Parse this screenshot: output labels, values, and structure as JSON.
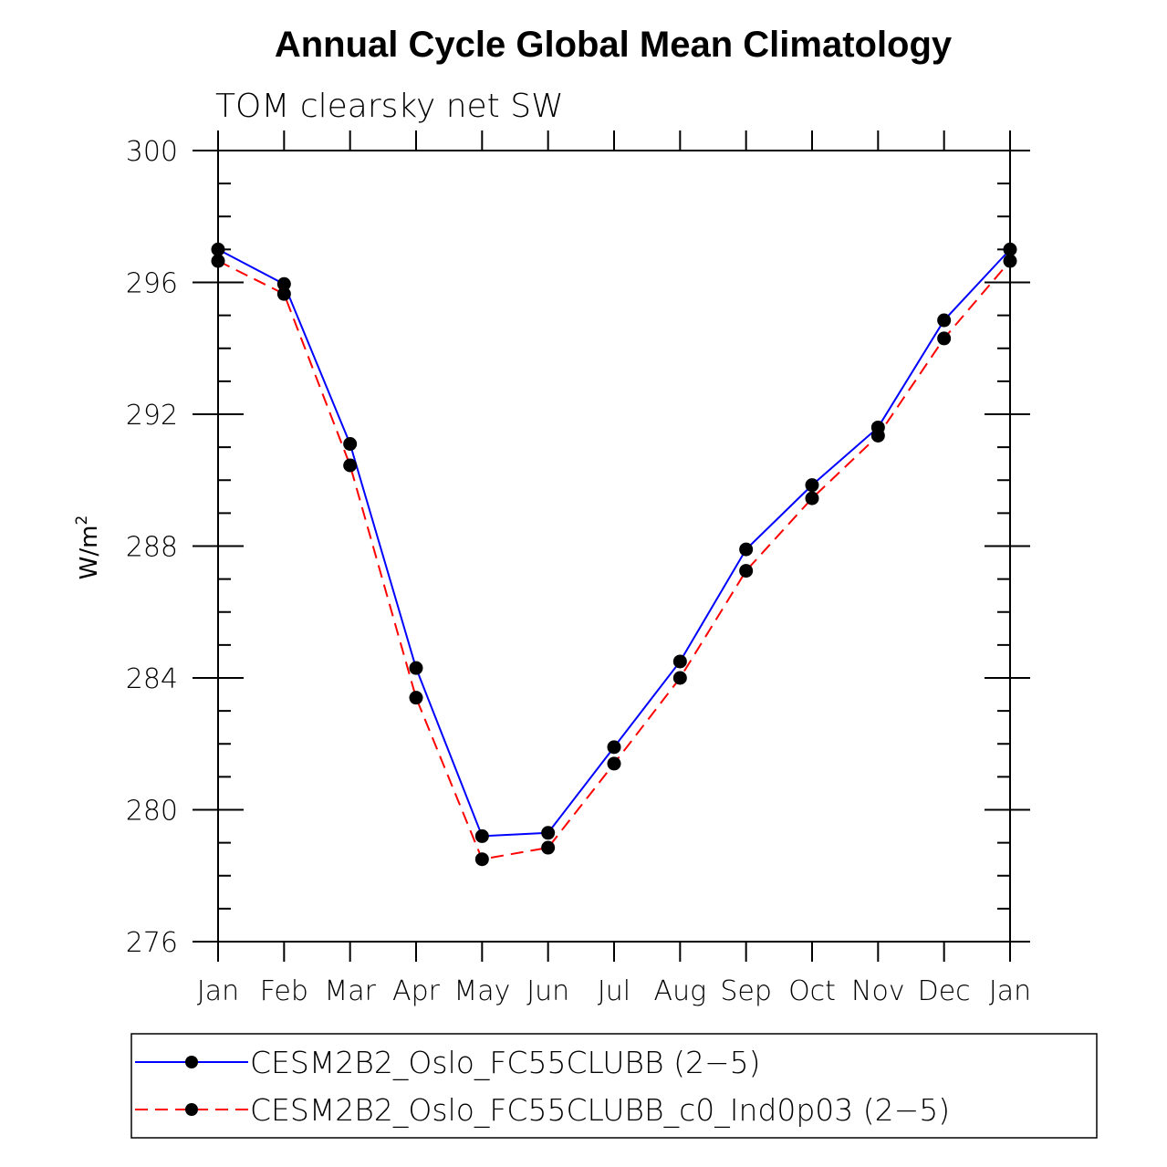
{
  "chart_data": {
    "type": "line",
    "title": "Annual Cycle Global Mean Climatology",
    "subtitle": "TOM clearsky net SW",
    "ylabel": "W/m",
    "ylabel_superscript": "2",
    "ylim": [
      276,
      300
    ],
    "yticks": [
      276,
      280,
      284,
      288,
      292,
      296,
      300
    ],
    "categories": [
      "Jan",
      "Feb",
      "Mar",
      "Apr",
      "May",
      "Jun",
      "Jul",
      "Aug",
      "Sep",
      "Oct",
      "Nov",
      "Dec",
      "Jan"
    ],
    "series": [
      {
        "name": "CESM2B2_Oslo_FC55CLUBB (2-5)",
        "color": "#0000ff",
        "dash": "solid",
        "values": [
          297.0,
          295.95,
          291.1,
          284.3,
          279.2,
          279.3,
          281.9,
          284.5,
          287.9,
          289.85,
          291.6,
          294.85,
          297.0
        ]
      },
      {
        "name": "CESM2B2_Oslo_FC55CLUBB_c0_Ind0p03 (2-5)",
        "color": "#ff0000",
        "dash": "dashed",
        "values": [
          296.65,
          295.65,
          290.45,
          283.4,
          278.5,
          278.85,
          281.4,
          284.0,
          287.25,
          289.45,
          291.35,
          294.3,
          296.65
        ]
      }
    ],
    "marker_color": "#000000",
    "legend": {
      "position": "bottom",
      "entries": [
        "CESM2B2_Oslo_FC55CLUBB (2−5)",
        "CESM2B2_Oslo_FC55CLUBB_c0_Ind0p03 (2−5)"
      ]
    }
  }
}
